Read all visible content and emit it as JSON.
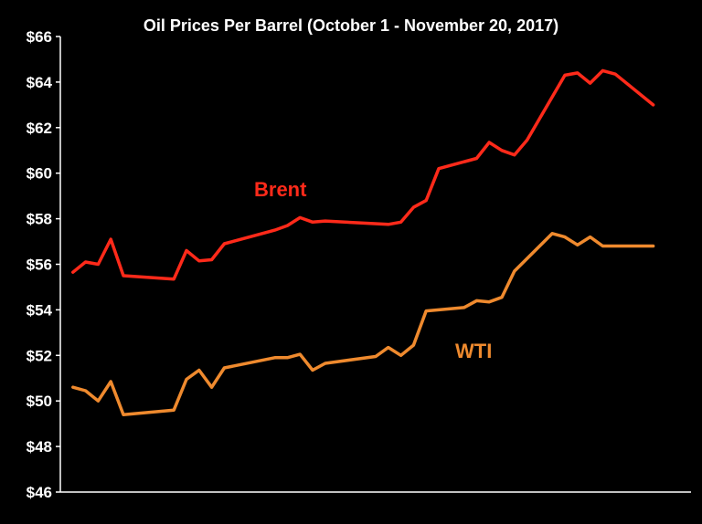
{
  "chart_data": {
    "type": "line",
    "title": "Oil Prices Per Barrel  (October 1 - November 20, 2017)",
    "xlabel": "",
    "ylabel": "",
    "ylim": [
      46,
      66
    ],
    "ytick_step": 2,
    "ytick_prefix": "$",
    "x_range": [
      "2017-10-01",
      "2017-11-20"
    ],
    "grid": false,
    "colors": {
      "background": "#000000",
      "axis": "#ffffff",
      "text": "#ffffff"
    },
    "series": [
      {
        "name": "Brent",
        "color": "#ff2a1a",
        "points": [
          [
            "2017-10-02",
            55.65
          ],
          [
            "2017-10-03",
            56.1
          ],
          [
            "2017-10-04",
            56.0
          ],
          [
            "2017-10-05",
            57.1
          ],
          [
            "2017-10-06",
            55.5
          ],
          [
            "2017-10-10",
            55.35
          ],
          [
            "2017-10-11",
            56.6
          ],
          [
            "2017-10-12",
            56.15
          ],
          [
            "2017-10-13",
            56.2
          ],
          [
            "2017-10-14",
            56.9
          ],
          [
            "2017-10-18",
            57.5
          ],
          [
            "2017-10-19",
            57.7
          ],
          [
            "2017-10-20",
            58.05
          ],
          [
            "2017-10-21",
            57.85
          ],
          [
            "2017-10-22",
            57.9
          ],
          [
            "2017-10-27",
            57.75
          ],
          [
            "2017-10-28",
            57.85
          ],
          [
            "2017-10-29",
            58.5
          ],
          [
            "2017-10-30",
            58.8
          ],
          [
            "2017-10-31",
            60.2
          ],
          [
            "2017-11-03",
            60.65
          ],
          [
            "2017-11-04",
            61.35
          ],
          [
            "2017-11-05",
            61.0
          ],
          [
            "2017-11-06",
            60.8
          ],
          [
            "2017-11-07",
            61.45
          ],
          [
            "2017-11-10",
            64.3
          ],
          [
            "2017-11-11",
            64.4
          ],
          [
            "2017-11-12",
            63.95
          ],
          [
            "2017-11-13",
            64.5
          ],
          [
            "2017-11-14",
            64.35
          ],
          [
            "2017-11-17",
            63.0
          ]
        ]
      },
      {
        "name": "WTI",
        "color": "#ef8a2e",
        "points": [
          [
            "2017-10-02",
            50.6
          ],
          [
            "2017-10-03",
            50.45
          ],
          [
            "2017-10-04",
            50.0
          ],
          [
            "2017-10-05",
            50.85
          ],
          [
            "2017-10-06",
            49.4
          ],
          [
            "2017-10-10",
            49.6
          ],
          [
            "2017-10-11",
            50.95
          ],
          [
            "2017-10-12",
            51.35
          ],
          [
            "2017-10-13",
            50.6
          ],
          [
            "2017-10-14",
            51.45
          ],
          [
            "2017-10-18",
            51.9
          ],
          [
            "2017-10-19",
            51.9
          ],
          [
            "2017-10-20",
            52.05
          ],
          [
            "2017-10-21",
            51.35
          ],
          [
            "2017-10-22",
            51.65
          ],
          [
            "2017-10-26",
            51.95
          ],
          [
            "2017-10-27",
            52.35
          ],
          [
            "2017-10-28",
            52.0
          ],
          [
            "2017-10-29",
            52.45
          ],
          [
            "2017-10-30",
            53.95
          ],
          [
            "2017-11-02",
            54.1
          ],
          [
            "2017-11-03",
            54.4
          ],
          [
            "2017-11-04",
            54.35
          ],
          [
            "2017-11-05",
            54.55
          ],
          [
            "2017-11-06",
            55.7
          ],
          [
            "2017-11-09",
            57.35
          ],
          [
            "2017-11-10",
            57.2
          ],
          [
            "2017-11-11",
            56.85
          ],
          [
            "2017-11-12",
            57.2
          ],
          [
            "2017-11-13",
            56.8
          ],
          [
            "2017-11-17",
            56.8
          ]
        ]
      }
    ]
  }
}
